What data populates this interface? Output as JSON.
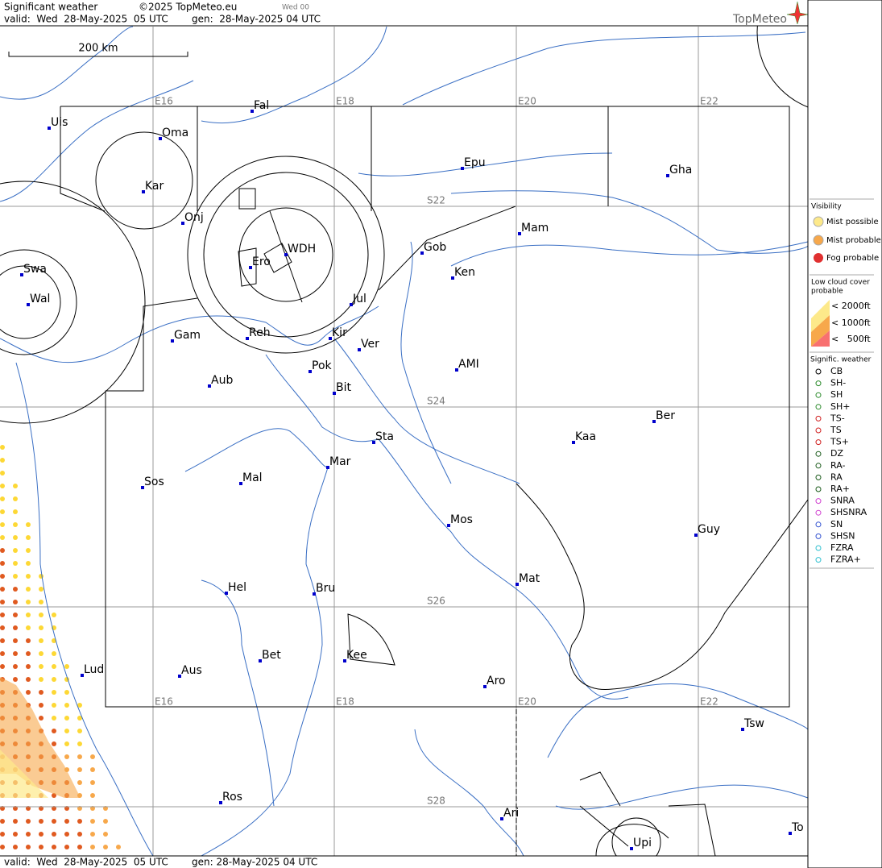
{
  "header": {
    "title": "Significant weather",
    "copyright": "©2025 TopMeteo.eu",
    "run": "Wed 00",
    "valid": "valid:  Wed  28-May-2025  05 UTC",
    "generated": "gen:  28-May-2025 04 UTC",
    "logo": "TopMeteo"
  },
  "map": {
    "scale": "200 km",
    "lon_labels_top": [
      "E16",
      "E18",
      "E20",
      "E22"
    ],
    "lon_labels_bottom": [
      "E16",
      "E18",
      "E20",
      "E22"
    ],
    "lat_labels": [
      "S22",
      "S24",
      "S26",
      "S28"
    ],
    "places": [
      "Uis",
      "Fal",
      "Oma",
      "Kar",
      "Onj",
      "WDH",
      "Ero",
      "Swa",
      "Wal",
      "Epu",
      "Gha",
      "Mam",
      "Gob",
      "Ken",
      "Jul",
      "Gam",
      "Reh",
      "Kir",
      "Ver",
      "AMI",
      "Pok",
      "Aub",
      "Bit",
      "Ber",
      "Sta",
      "Kaa",
      "Mar",
      "Sos",
      "Mal",
      "Mos",
      "Guy",
      "Mat",
      "Hel",
      "Bru",
      "Bet",
      "Kee",
      "Lud",
      "Aus",
      "Aro",
      "Tsw",
      "Ros",
      "Ari",
      "To",
      "Upi"
    ]
  },
  "legend": {
    "visibility": {
      "title": "Visibility",
      "items": [
        "Mist possible",
        "Mist probable",
        "Fog probable"
      ]
    },
    "low_cloud": {
      "title": [
        "Low cloud cover",
        "probable"
      ],
      "items": [
        "< 2000ft",
        "< 1000ft",
        "<   500ft"
      ]
    },
    "sig_weather": {
      "title": "Signific. weather",
      "items": [
        "CB",
        "SH-",
        "SH",
        "SH+",
        "TS-",
        "TS",
        "TS+",
        "DZ",
        "RA-",
        "RA",
        "RA+",
        "SNRA",
        "SHSNRA",
        "SN",
        "SHSN",
        "FZRA",
        "FZRA+"
      ]
    }
  },
  "footer": {
    "valid": "valid:  Wed  28-May-2025  05 UTC",
    "generated": "gen: 28-May-2025 04 UTC"
  }
}
